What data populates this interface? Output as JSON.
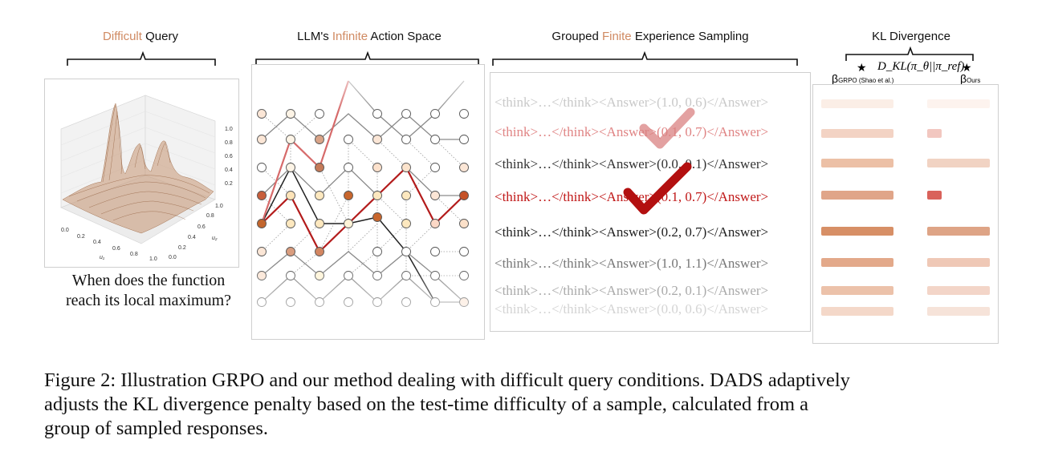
{
  "headers": {
    "query_hl": "Difficult",
    "query_rest": " Query",
    "action_pre": "LLM's ",
    "action_hl": "Infinite",
    "action_post": " Action Space",
    "sampling_pre": "Grouped ",
    "sampling_hl": "Finite",
    "sampling_post": " Experience Sampling",
    "kl": "KL Divergence"
  },
  "plot3d": {
    "z_ticks": [
      "1.0",
      "0.8",
      "0.6",
      "0.4",
      "0.2"
    ],
    "x_ticks": [
      "0.0",
      "0.2",
      "0.4",
      "0.6",
      "0.8",
      "1.0"
    ],
    "y_ticks": [
      "0.0",
      "0.2",
      "0.4",
      "0.6",
      "0.8",
      "1.0"
    ],
    "x_label": "u₁",
    "y_label": "u₂",
    "surface_color": "#a8683a"
  },
  "question": {
    "line1": "When does the function",
    "line2": "reach its local maximum?"
  },
  "responses": [
    {
      "text": "<think>…</think><Answer>(1.0, 0.6)</Answer>",
      "color": "#c9c9c9",
      "check": false
    },
    {
      "text": "<think>…</think><Answer>(0.1, 0.7)</Answer>",
      "color": "#e08585",
      "check": true
    },
    {
      "text": "<think>…</think><Answer>(0.0, 0.1)</Answer>",
      "color": "#333333",
      "check": false
    },
    {
      "text": "<think>…</think><Answer>(0.1, 0.7)</Answer>",
      "color": "#c01818",
      "check": true
    },
    {
      "text": "<think>…</think><Answer>(0.2, 0.7)</Answer>",
      "color": "#222222",
      "check": false
    },
    {
      "text": "<think>…</think><Answer>(1.0, 1.1)</Answer>",
      "color": "#777777",
      "check": false
    },
    {
      "text": "<think>…</think><Answer>(0.2, 0.1)</Answer>",
      "color": "#aaaaaa",
      "check": false
    },
    {
      "text": "<think>…</think><Answer>(0.0, 0.6)</Answer>",
      "color": "#d4d4d4",
      "check": false
    }
  ],
  "kl": {
    "star": "★",
    "formula": "D_KL(π_θ||π_ref)",
    "left_beta": "β",
    "left_sub": "GRPO (Shao et al.)",
    "right_beta": "β",
    "right_sub": "Ours",
    "grpo_bars": [
      {
        "level": 0.1,
        "color": "#fbeee6"
      },
      {
        "level": 0.35,
        "color": "#f3d3c4"
      },
      {
        "level": 0.6,
        "color": "#ecc0a6"
      },
      {
        "level": 0.85,
        "color": "#e0a589"
      },
      {
        "level": 1.0,
        "color": "#d78f66"
      },
      {
        "level": 0.8,
        "color": "#e3a98a"
      },
      {
        "level": 0.55,
        "color": "#ecc2aa"
      },
      {
        "level": 0.3,
        "color": "#f4d8c9"
      }
    ],
    "ours_bars": [
      {
        "level": 0.1,
        "color": "#fdf3ee"
      },
      {
        "level": 0.35,
        "color": "#f2c7c0"
      },
      {
        "level": 0.55,
        "color": "#f1d3c3"
      },
      {
        "level": 0.95,
        "color": "#d9625b"
      },
      {
        "level": 0.9,
        "color": "#dea486"
      },
      {
        "level": 0.6,
        "color": "#efc8b6"
      },
      {
        "level": 0.4,
        "color": "#f3d5c8"
      },
      {
        "level": 0.25,
        "color": "#f6e3d9"
      }
    ]
  },
  "caption": {
    "line1": "Figure 2: Illustration GRPO and our method dealing with difficult query conditions. DADS adaptively",
    "line2": "adjusts the KL divergence penalty based on the test-time difficulty of a sample, calculated from a",
    "line3": "group of sampled responses."
  }
}
